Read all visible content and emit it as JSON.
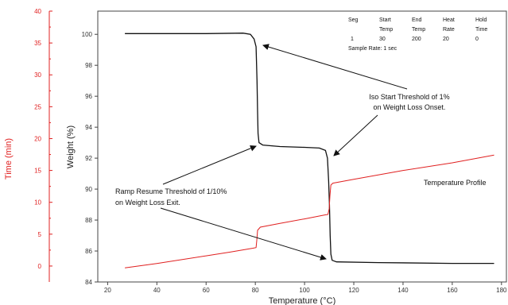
{
  "chart_data": {
    "type": "line",
    "xlabel": "Temperature (°C)",
    "ylabel_left": "Weight (%)",
    "ylabel_secondary": "Time (min)",
    "xlim": [
      16,
      182
    ],
    "x_ticks": [
      20,
      40,
      60,
      80,
      100,
      120,
      140,
      160,
      180
    ],
    "ylim_weight": [
      84,
      101.5
    ],
    "weight_ticks": [
      84,
      86,
      88,
      90,
      92,
      94,
      96,
      98,
      100
    ],
    "ylim_time": [
      -2.5,
      40
    ],
    "time_ticks": [
      0,
      5,
      10,
      15,
      20,
      25,
      30,
      35,
      40
    ],
    "colors": {
      "weight": "#111111",
      "time": "#e02020"
    },
    "series": [
      {
        "axis": "weight",
        "points": [
          [
            27,
            100.05
          ],
          [
            60,
            100.05
          ],
          [
            75,
            100.08
          ],
          [
            78,
            100.0
          ],
          [
            79.5,
            99.7
          ],
          [
            80.3,
            99.2
          ],
          [
            80.7,
            97
          ],
          [
            80.9,
            95
          ],
          [
            81.1,
            93.6
          ],
          [
            81.5,
            93.0
          ],
          [
            83,
            92.85
          ],
          [
            90,
            92.75
          ],
          [
            100,
            92.7
          ],
          [
            106,
            92.65
          ],
          [
            108.5,
            92.5
          ],
          [
            109.3,
            92.0
          ],
          [
            109.8,
            90.5
          ],
          [
            110.1,
            89
          ],
          [
            110.4,
            87
          ],
          [
            110.7,
            85.8
          ],
          [
            111.2,
            85.4
          ],
          [
            113,
            85.3
          ],
          [
            130,
            85.25
          ],
          [
            160,
            85.2
          ],
          [
            177,
            85.2
          ]
        ]
      },
      {
        "name": "Temperature Profile",
        "axis": "time",
        "points": [
          [
            27,
            -0.3
          ],
          [
            40,
            0.4
          ],
          [
            60,
            1.6
          ],
          [
            70,
            2.2
          ],
          [
            79,
            2.8
          ],
          [
            80.3,
            2.9
          ],
          [
            80.6,
            4
          ],
          [
            80.9,
            5.6
          ],
          [
            82,
            6.1
          ],
          [
            90,
            6.7
          ],
          [
            100,
            7.4
          ],
          [
            108,
            8.0
          ],
          [
            109.5,
            8.1
          ],
          [
            110,
            9
          ],
          [
            110.3,
            11
          ],
          [
            110.7,
            12.7
          ],
          [
            111.5,
            13.0
          ],
          [
            120,
            13.6
          ],
          [
            140,
            15.0
          ],
          [
            160,
            16.2
          ],
          [
            177,
            17.4
          ]
        ]
      }
    ],
    "annotations": {
      "iso_line1": "Iso Start Threshold of 1%",
      "iso_line2": "on Weight Loss Onset.",
      "ramp_line1": "Ramp Resume Threshold of 1/10%",
      "ramp_line2": "on Weight Loss Exit.",
      "profile": "Temperature Profile"
    },
    "method_table": {
      "headers_row1": [
        "Seg",
        "Start",
        "End",
        "Heat",
        "Hold"
      ],
      "headers_row2": [
        "",
        "Temp",
        "Temp",
        "Rate",
        "Time"
      ],
      "values": [
        "1",
        "30",
        "200",
        "20",
        "0"
      ],
      "sample_rate": "Sample Rate: 1 sec"
    }
  }
}
